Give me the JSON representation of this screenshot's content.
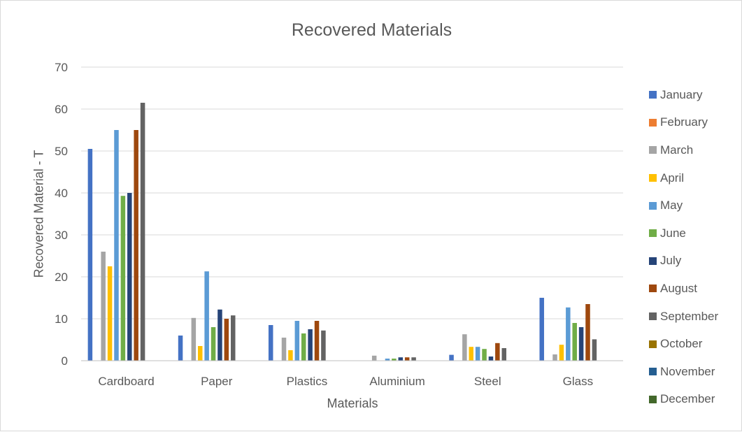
{
  "chart_data": {
    "type": "bar",
    "title": "Recovered Materials",
    "xlabel": "Materials",
    "ylabel": "Recovered Material - T",
    "ylim": [
      0,
      70
    ],
    "yticks": [
      0,
      10,
      20,
      30,
      40,
      50,
      60,
      70
    ],
    "grid": true,
    "legend_position": "right",
    "categories": [
      "Cardboard",
      "Paper",
      "Plastics",
      "Aluminium",
      "Steel",
      "Glass"
    ],
    "series": [
      {
        "name": "January",
        "color": "#4472c4",
        "values": [
          50.5,
          6,
          8.5,
          0,
          1.4,
          15
        ]
      },
      {
        "name": "February",
        "color": "#ed7d31",
        "values": [
          0,
          0,
          0,
          0,
          0,
          0
        ]
      },
      {
        "name": "March",
        "color": "#a5a5a5",
        "values": [
          26,
          10.2,
          5.5,
          1.2,
          6.3,
          1.5
        ]
      },
      {
        "name": "April",
        "color": "#ffc000",
        "values": [
          22.5,
          3.5,
          2.5,
          0,
          3.3,
          3.8
        ]
      },
      {
        "name": "May",
        "color": "#5b9bd5",
        "values": [
          55,
          21.3,
          9.5,
          0.5,
          3.3,
          12.7
        ]
      },
      {
        "name": "June",
        "color": "#70ad47",
        "values": [
          39.3,
          8,
          6.5,
          0.5,
          2.8,
          9
        ]
      },
      {
        "name": "July",
        "color": "#264478",
        "values": [
          40,
          12.2,
          7.5,
          0.8,
          1,
          8
        ]
      },
      {
        "name": "August",
        "color": "#9e480e",
        "values": [
          55,
          10,
          9.5,
          0.8,
          4.2,
          13.5
        ]
      },
      {
        "name": "September",
        "color": "#636363",
        "values": [
          61.5,
          10.8,
          7.2,
          0.8,
          3,
          5.1
        ]
      },
      {
        "name": "October",
        "color": "#997300",
        "values": [
          0,
          0,
          0,
          0,
          0,
          0
        ]
      },
      {
        "name": "November",
        "color": "#255e91",
        "values": [
          0,
          0,
          0,
          0,
          0,
          0
        ]
      },
      {
        "name": "December",
        "color": "#43682b",
        "values": [
          0,
          0,
          0,
          0,
          0,
          0
        ]
      }
    ]
  }
}
